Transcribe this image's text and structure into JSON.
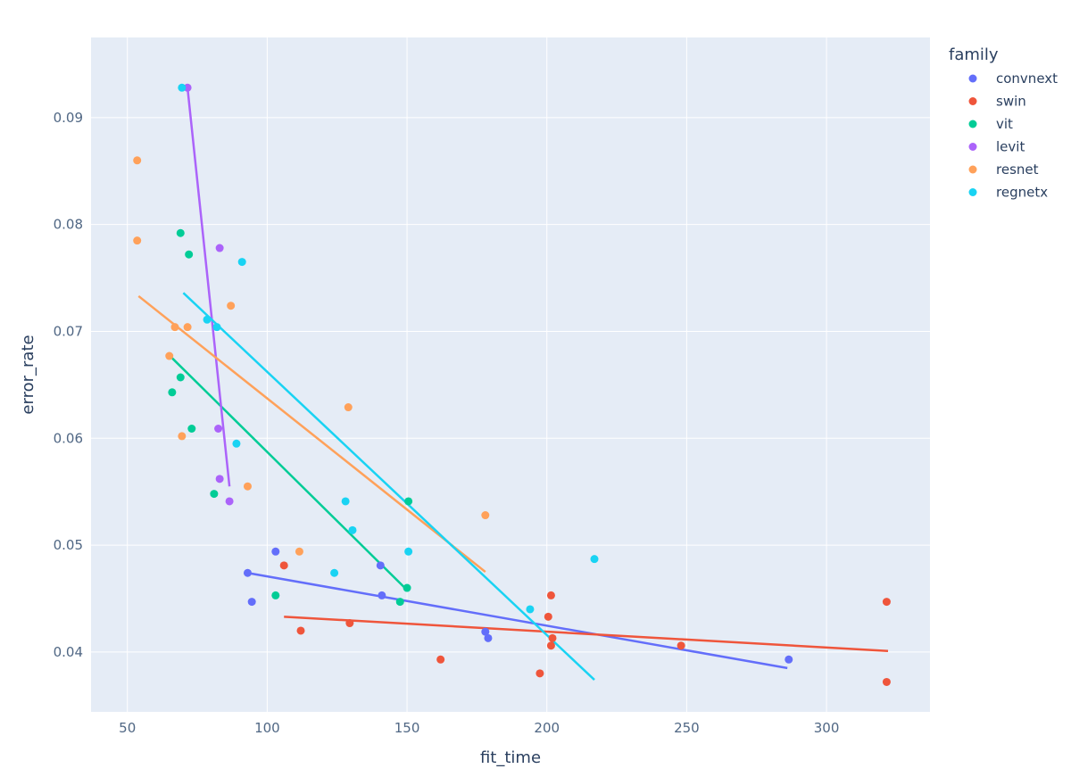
{
  "chart_data": {
    "type": "scatter",
    "xlabel": "fit_time",
    "ylabel": "error_rate",
    "xlim": [
      37,
      337
    ],
    "ylim": [
      0.0344,
      0.0975
    ],
    "x_ticks": [
      50,
      100,
      150,
      200,
      250,
      300
    ],
    "y_ticks": [
      0.04,
      0.05,
      0.06,
      0.07,
      0.08,
      0.09
    ],
    "grid": true,
    "trendlines": true,
    "legend": {
      "title": "family",
      "position": "right"
    },
    "series": [
      {
        "name": "convnext",
        "color": "#636efa",
        "x": [
          93,
          94.5,
          103,
          140.5,
          141,
          178,
          179,
          286.5
        ],
        "y": [
          0.0474,
          0.0447,
          0.0494,
          0.0481,
          0.0453,
          0.0419,
          0.0413,
          0.0393
        ],
        "trend": [
          [
            93,
            0.0474
          ],
          [
            286,
            0.0385
          ]
        ]
      },
      {
        "name": "swin",
        "color": "#ef553b",
        "x": [
          106,
          112,
          129.5,
          162,
          197.5,
          200.5,
          201.5,
          201.5,
          202,
          248,
          321.5,
          321.5
        ],
        "y": [
          0.0481,
          0.042,
          0.0427,
          0.0393,
          0.038,
          0.0433,
          0.0453,
          0.0406,
          0.0413,
          0.0406,
          0.0447,
          0.0372
        ],
        "trend": [
          [
            106,
            0.0433
          ],
          [
            322,
            0.0401
          ]
        ]
      },
      {
        "name": "vit",
        "color": "#00cc96",
        "x": [
          66,
          69,
          69,
          72,
          73,
          81,
          103,
          147.5,
          150,
          150.5
        ],
        "y": [
          0.0643,
          0.0657,
          0.0792,
          0.0772,
          0.0609,
          0.0548,
          0.0453,
          0.0447,
          0.046,
          0.0541
        ],
        "trend": [
          [
            66,
            0.0675
          ],
          [
            150,
            0.0458
          ]
        ]
      },
      {
        "name": "levit",
        "color": "#ab63fa",
        "x": [
          71.5,
          82.5,
          83,
          83,
          86.5
        ],
        "y": [
          0.0928,
          0.0609,
          0.0562,
          0.0778,
          0.0541
        ],
        "trend": [
          [
            71.5,
            0.0928
          ],
          [
            86.5,
            0.0555
          ]
        ]
      },
      {
        "name": "resnet",
        "color": "#ffa15a",
        "x": [
          53.5,
          53.5,
          65,
          67,
          69.5,
          71.5,
          87,
          93,
          111.5,
          129,
          178
        ],
        "y": [
          0.086,
          0.0785,
          0.0677,
          0.0704,
          0.0602,
          0.0704,
          0.0724,
          0.0555,
          0.0494,
          0.0629,
          0.0528
        ],
        "trend": [
          [
            54,
            0.0733
          ],
          [
            178,
            0.0475
          ]
        ]
      },
      {
        "name": "regnetx",
        "color": "#19d3f3",
        "x": [
          69.5,
          78.5,
          82,
          89,
          91,
          124,
          128,
          130.5,
          150.5,
          194,
          217
        ],
        "y": [
          0.0928,
          0.0711,
          0.0704,
          0.0595,
          0.0765,
          0.0474,
          0.0541,
          0.0514,
          0.0494,
          0.044,
          0.0487
        ],
        "trend": [
          [
            70,
            0.0736
          ],
          [
            217,
            0.0374
          ]
        ]
      }
    ]
  }
}
